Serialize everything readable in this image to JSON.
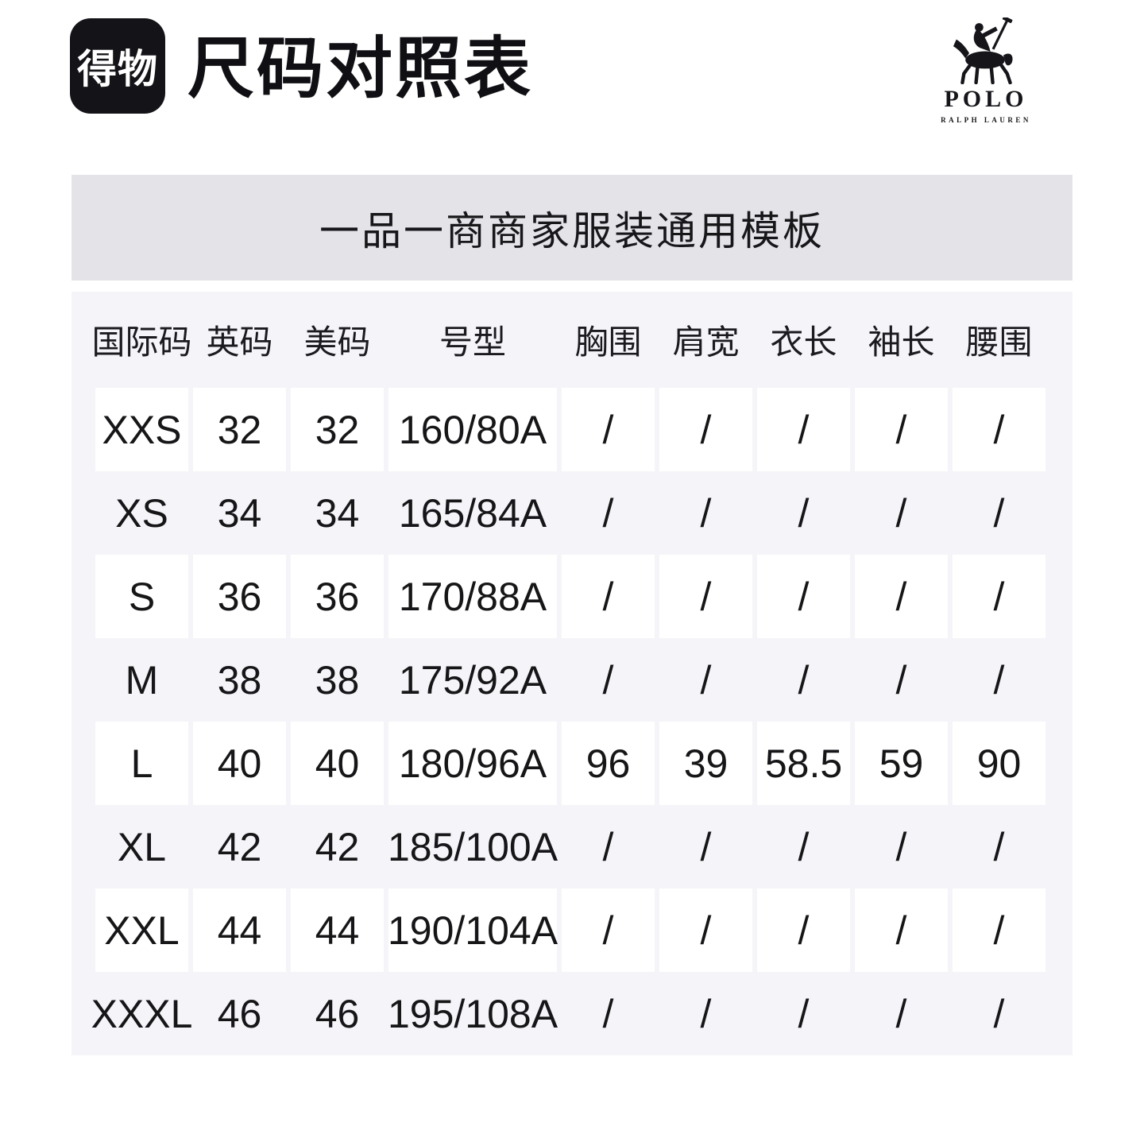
{
  "header": {
    "dewu_logo_text": "得物",
    "title": "尺码对照表",
    "polo": {
      "wordmark": "POLO",
      "subtitle": "RALPH LAUREN"
    }
  },
  "banner": {
    "text": "一品一商商家服装通用模板"
  },
  "chart_data": {
    "type": "table",
    "title": "一品一商商家服装通用模板",
    "columns": [
      "国际码",
      "英码",
      "美码",
      "号型",
      "胸围",
      "肩宽",
      "衣长",
      "袖长",
      "腰围"
    ],
    "rows": [
      [
        "XXS",
        "32",
        "32",
        "160/80A",
        "/",
        "/",
        "/",
        "/",
        "/"
      ],
      [
        "XS",
        "34",
        "34",
        "165/84A",
        "/",
        "/",
        "/",
        "/",
        "/"
      ],
      [
        "S",
        "36",
        "36",
        "170/88A",
        "/",
        "/",
        "/",
        "/",
        "/"
      ],
      [
        "M",
        "38",
        "38",
        "175/92A",
        "/",
        "/",
        "/",
        "/",
        "/"
      ],
      [
        "L",
        "40",
        "40",
        "180/96A",
        "96",
        "39",
        "58.5",
        "59",
        "90"
      ],
      [
        "XL",
        "42",
        "42",
        "185/100A",
        "/",
        "/",
        "/",
        "/",
        "/"
      ],
      [
        "XXL",
        "44",
        "44",
        "190/104A",
        "/",
        "/",
        "/",
        "/",
        "/"
      ],
      [
        "XXXL",
        "46",
        "46",
        "195/108A",
        "/",
        "/",
        "/",
        "/",
        "/"
      ]
    ]
  },
  "colors": {
    "banner_bg": "#e4e3e8",
    "table_bg": "#f5f4f8",
    "cell_bg": "#ffffff",
    "logo_bg": "#141418",
    "text": "#17171a"
  }
}
